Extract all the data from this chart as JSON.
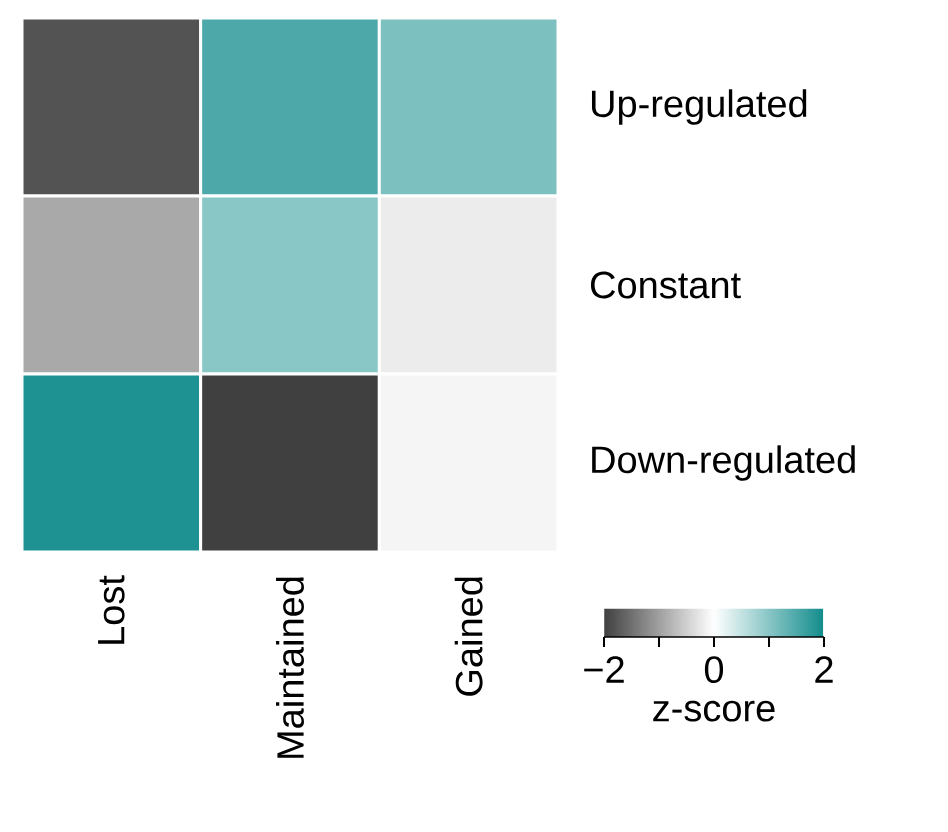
{
  "chart_data": {
    "type": "heatmap",
    "categories": [
      "Lost",
      "Maintained",
      "Gained"
    ],
    "y_categories": [
      "Up-regulated",
      "Constant",
      "Down-regulated"
    ],
    "cells": [
      [
        -1.8,
        1.5,
        1.1
      ],
      [
        -0.9,
        1.0,
        -0.2
      ],
      [
        1.9,
        -2.0,
        -0.1
      ]
    ],
    "clim": [
      -2,
      2
    ],
    "cticks": [
      {
        "value": -2,
        "label": "−2"
      },
      {
        "value": -1,
        "label": null
      },
      0,
      {
        "value": 1,
        "label": null
      },
      2
    ],
    "clabel": "z-score"
  }
}
